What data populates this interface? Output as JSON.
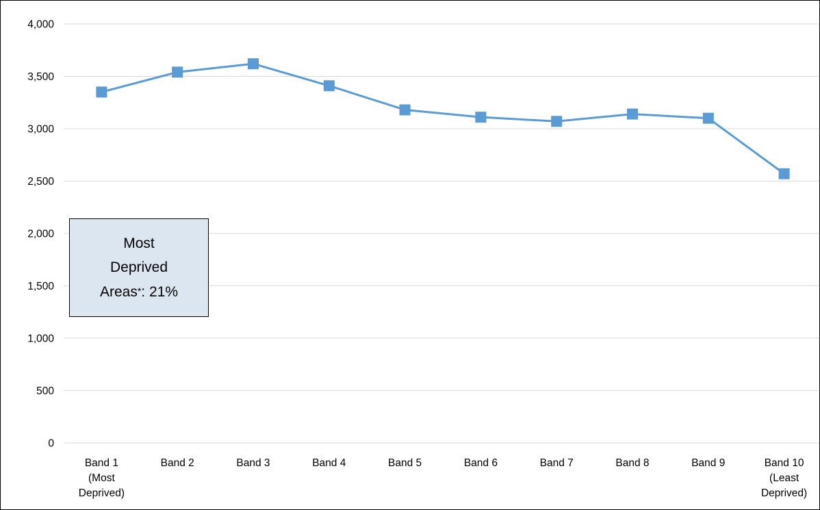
{
  "chart_data": {
    "type": "line",
    "title": "",
    "xlabel": "",
    "ylabel": "",
    "ylim": [
      0,
      4000
    ],
    "yticks": [
      "0",
      "500",
      "1,000",
      "1,500",
      "2,000",
      "2,500",
      "3,000",
      "3,500",
      "4,000"
    ],
    "ytick_values": [
      0,
      500,
      1000,
      1500,
      2000,
      2500,
      3000,
      3500,
      4000
    ],
    "categories": [
      [
        "Band 1",
        "(Most",
        "Deprived)"
      ],
      [
        "Band 2"
      ],
      [
        "Band 3"
      ],
      [
        "Band 4"
      ],
      [
        "Band 5"
      ],
      [
        "Band 6"
      ],
      [
        "Band 7"
      ],
      [
        "Band 8"
      ],
      [
        "Band 9"
      ],
      [
        "Band 10",
        "(Least",
        "Deprived)"
      ]
    ],
    "series": [
      {
        "values": [
          3350,
          3540,
          3620,
          3410,
          3180,
          3110,
          3070,
          3140,
          3100,
          2570
        ],
        "color": "#5b9bd5",
        "marker": "square"
      }
    ],
    "grid": true,
    "legend": "none",
    "gridline_color": "#d9d9d9"
  },
  "annotation": {
    "line1": "Most",
    "line2": "Deprived",
    "line3_prefix": "Areas",
    "line3_mark": "*",
    "line3_suffix": ": 21%",
    "background": "#dce6f1"
  }
}
